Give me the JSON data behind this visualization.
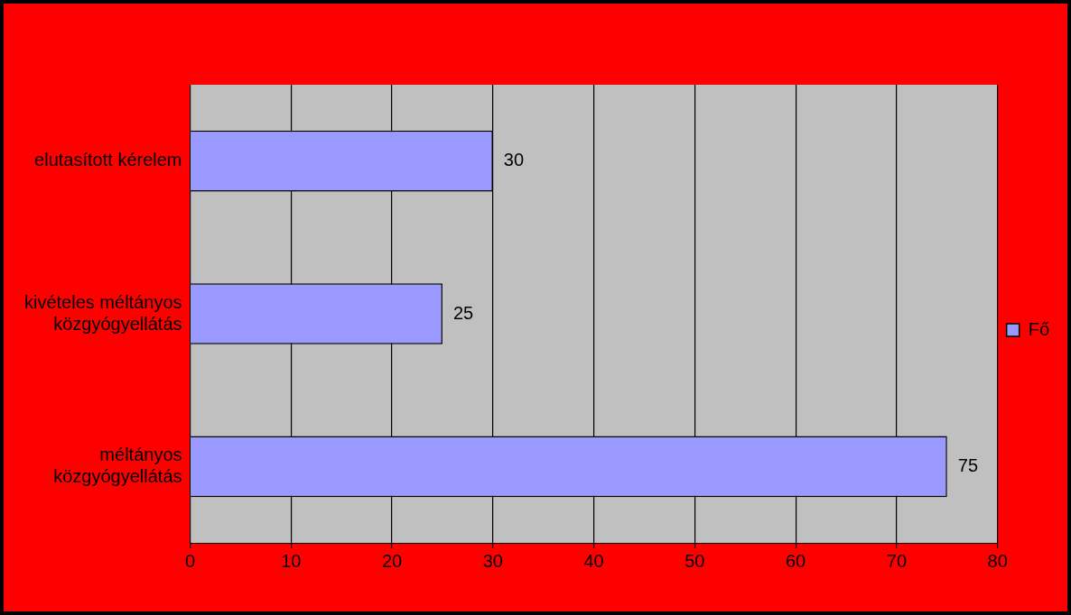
{
  "chart_data": {
    "type": "bar",
    "orientation": "horizontal",
    "categories": [
      "elutasított kérelem",
      "kivételes méltányos közgyógyellátás",
      "méltányos közgyógyellátás"
    ],
    "series": [
      {
        "name": "Fő",
        "color": "#9999ff",
        "values": [
          30,
          25,
          75
        ]
      }
    ],
    "xlim": [
      0,
      80
    ],
    "xticks": [
      0,
      10,
      20,
      30,
      40,
      50,
      60,
      70,
      80
    ],
    "grid": "x",
    "legend": "right",
    "data_labels": true
  }
}
